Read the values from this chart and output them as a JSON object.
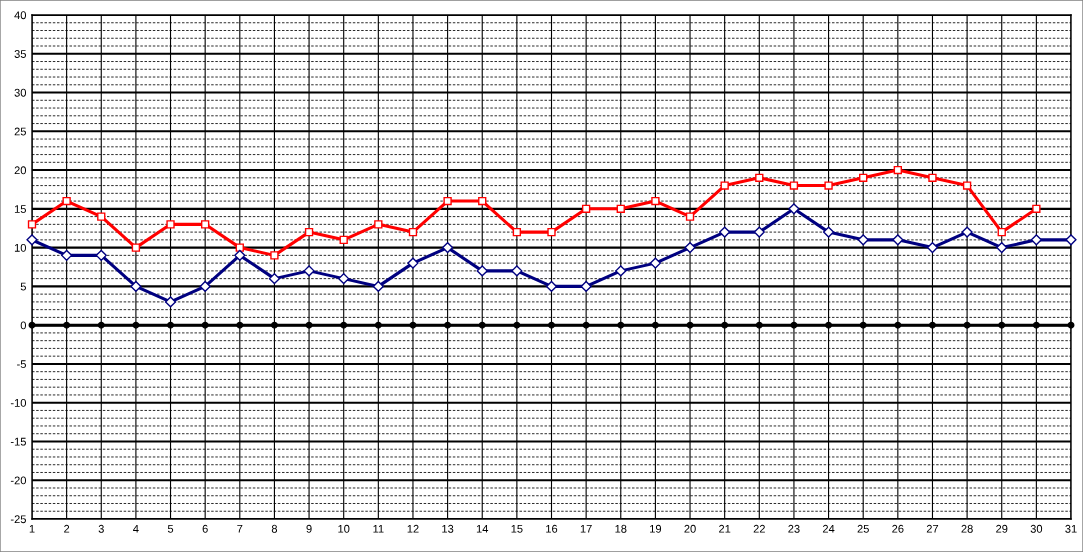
{
  "chart_data": {
    "type": "line",
    "x": [
      1,
      2,
      3,
      4,
      5,
      6,
      7,
      8,
      9,
      10,
      11,
      12,
      13,
      14,
      15,
      16,
      17,
      18,
      19,
      20,
      21,
      22,
      23,
      24,
      25,
      26,
      27,
      28,
      29,
      30,
      31
    ],
    "series": [
      {
        "color": "#ff0000",
        "marker": "square",
        "values": [
          13,
          16,
          14,
          10,
          13,
          13,
          10,
          9,
          12,
          11,
          13,
          12,
          16,
          16,
          12,
          12,
          15,
          15,
          16,
          14,
          18,
          19,
          18,
          18,
          19,
          20,
          19,
          18,
          12,
          15,
          null
        ]
      },
      {
        "color": "#000080",
        "marker": "diamond",
        "values": [
          11,
          9,
          9,
          5,
          3,
          5,
          9,
          6,
          7,
          6,
          5,
          8,
          10,
          7,
          7,
          5,
          5,
          7,
          8,
          10,
          12,
          12,
          15,
          12,
          11,
          11,
          10,
          12,
          10,
          11,
          11
        ]
      },
      {
        "color": "#000000",
        "marker": "circle",
        "values": [
          0,
          0,
          0,
          0,
          0,
          0,
          0,
          0,
          0,
          0,
          0,
          0,
          0,
          0,
          0,
          0,
          0,
          0,
          0,
          0,
          0,
          0,
          0,
          0,
          0,
          0,
          0,
          0,
          0,
          0,
          0
        ]
      }
    ],
    "xlim": [
      1,
      31
    ],
    "xticks": [
      1,
      2,
      3,
      4,
      5,
      6,
      7,
      8,
      9,
      10,
      11,
      12,
      13,
      14,
      15,
      16,
      17,
      18,
      19,
      20,
      21,
      22,
      23,
      24,
      25,
      26,
      27,
      28,
      29,
      30,
      31
    ],
    "ylim": [
      -25,
      40
    ],
    "yticks": [
      -25,
      {
        "value": -24,
        "label": null
      },
      {
        "value": -23,
        "label": null
      },
      {
        "value": -22,
        "label": null
      },
      {
        "value": -21,
        "label": null
      },
      -20,
      {
        "value": -19,
        "label": null
      },
      {
        "value": -18,
        "label": null
      },
      {
        "value": -17,
        "label": null
      },
      {
        "value": -16,
        "label": null
      },
      -15,
      {
        "value": -14,
        "label": null
      },
      {
        "value": -13,
        "label": null
      },
      {
        "value": -12,
        "label": null
      },
      {
        "value": -11,
        "label": null
      },
      -10,
      {
        "value": -9,
        "label": null
      },
      {
        "value": -8,
        "label": null
      },
      {
        "value": -7,
        "label": null
      },
      {
        "value": -6,
        "label": null
      },
      -5,
      {
        "value": -4,
        "label": null
      },
      {
        "value": -3,
        "label": null
      },
      {
        "value": -2,
        "label": null
      },
      {
        "value": -1,
        "label": null
      },
      0,
      {
        "value": 1,
        "label": null
      },
      {
        "value": 2,
        "label": null
      },
      {
        "value": 3,
        "label": null
      },
      {
        "value": 4,
        "label": null
      },
      5,
      {
        "value": 6,
        "label": null
      },
      {
        "value": 7,
        "label": null
      },
      {
        "value": 8,
        "label": null
      },
      {
        "value": 9,
        "label": null
      },
      10,
      {
        "value": 11,
        "label": null
      },
      {
        "value": 12,
        "label": null
      },
      {
        "value": 13,
        "label": null
      },
      {
        "value": 14,
        "label": null
      },
      15,
      {
        "value": 16,
        "label": null
      },
      {
        "value": 17,
        "label": null
      },
      {
        "value": 18,
        "label": null
      },
      {
        "value": 19,
        "label": null
      },
      20,
      {
        "value": 21,
        "label": null
      },
      {
        "value": 22,
        "label": null
      },
      {
        "value": 23,
        "label": null
      },
      {
        "value": 24,
        "label": null
      },
      25,
      {
        "value": 26,
        "label": null
      },
      {
        "value": 27,
        "label": null
      },
      {
        "value": 28,
        "label": null
      },
      {
        "value": 29,
        "label": null
      },
      30,
      {
        "value": 31,
        "label": null
      },
      {
        "value": 32,
        "label": null
      },
      {
        "value": 33,
        "label": null
      },
      {
        "value": 34,
        "label": null
      },
      35,
      {
        "value": 36,
        "label": null
      },
      {
        "value": 37,
        "label": null
      },
      {
        "value": 38,
        "label": null
      },
      {
        "value": 39,
        "label": null
      },
      40
    ],
    "grid": true
  }
}
